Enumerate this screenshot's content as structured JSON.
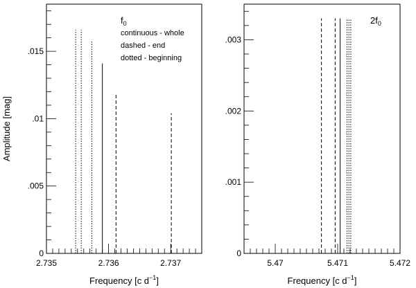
{
  "chart_data": [
    {
      "type": "spike",
      "panel_label": "f",
      "panel_label_sub": "0",
      "xlabel": "Frequency",
      "xunit_prefix": "[c d",
      "xunit_sup": "−1",
      "xunit_suffix": "]",
      "ylabel": "Amplitude [mag]",
      "xlim": [
        2.735,
        2.7375
      ],
      "ylim": [
        0,
        0.0185
      ],
      "xtick_values": [
        2.735,
        2.736,
        2.737
      ],
      "xtick_labels": [
        "2.735",
        "2.736",
        "2.737"
      ],
      "ytick_values": [
        0,
        0.005,
        0.01,
        0.015
      ],
      "ytick_labels": [
        "0",
        ".005",
        ".01",
        ".015"
      ],
      "legend_lines": [
        "continuous - whole",
        "dashed - end",
        "dotted - beginning"
      ],
      "series": [
        {
          "name": "continuous - whole",
          "style": "solid",
          "x": [
            2.7359
          ],
          "y": [
            0.0141
          ]
        },
        {
          "name": "dashed - end",
          "style": "dashed",
          "x": [
            2.73612,
            2.73701
          ],
          "y": [
            0.0119,
            0.0104
          ]
        },
        {
          "name": "dotted - beginning",
          "style": "dotted",
          "x": [
            2.73547,
            2.73556,
            2.73573
          ],
          "y": [
            0.0166,
            0.0166,
            0.0158
          ]
        }
      ]
    },
    {
      "type": "spike",
      "panel_label": "2f",
      "panel_label_sub": "0",
      "xlabel": "Frequency",
      "xunit_prefix": "[c d",
      "xunit_sup": "−1",
      "xunit_suffix": "]",
      "ylabel": "",
      "xlim": [
        5.4695,
        5.472
      ],
      "ylim": [
        0,
        0.0035
      ],
      "xtick_values": [
        5.47,
        5.471,
        5.472
      ],
      "xtick_labels": [
        "5.47",
        "5.471",
        "5.472"
      ],
      "ytick_values": [
        0,
        0.001,
        0.002,
        0.003
      ],
      "ytick_labels": [
        "0",
        ".001",
        ".002",
        ".003"
      ],
      "legend_lines": [],
      "series": [
        {
          "name": "continuous - whole",
          "style": "solid",
          "x": [
            5.47104
          ],
          "y": [
            0.0033
          ]
        },
        {
          "name": "dashed - end",
          "style": "dashed",
          "x": [
            5.47074,
            5.47096
          ],
          "y": [
            0.0033,
            0.0033
          ]
        },
        {
          "name": "dotted - beginning",
          "style": "dotted",
          "x": [
            5.47115,
            5.47118,
            5.47121
          ],
          "y": [
            0.0033,
            0.0033,
            0.0033
          ]
        }
      ]
    }
  ]
}
